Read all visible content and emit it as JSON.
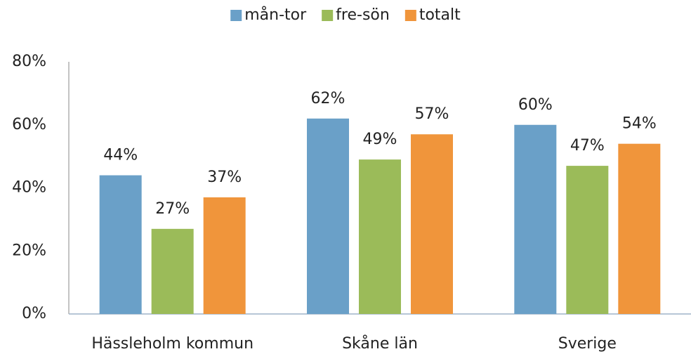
{
  "chart_data": {
    "type": "bar",
    "categories": [
      "Hässleholm kommun",
      "Skåne län",
      "Sverige"
    ],
    "series": [
      {
        "name": "mån-tor",
        "color": "#6aa0c8",
        "values": [
          44,
          62,
          60
        ],
        "value_labels": [
          "44%",
          "62%",
          "60%"
        ]
      },
      {
        "name": "fre-sön",
        "color": "#9bbb59",
        "values": [
          27,
          49,
          47
        ],
        "value_labels": [
          "27%",
          "49%",
          "47%"
        ]
      },
      {
        "name": "totalt",
        "color": "#f0953b",
        "values": [
          37,
          57,
          54
        ],
        "value_labels": [
          "37%",
          "57%",
          "54%"
        ]
      }
    ],
    "ylim": [
      0,
      80
    ],
    "yticks": [
      {
        "value": 0,
        "label": "0%"
      },
      {
        "value": 20,
        "label": "20%"
      },
      {
        "value": 40,
        "label": "40%"
      },
      {
        "value": 60,
        "label": "60%"
      },
      {
        "value": 80,
        "label": "80%"
      }
    ],
    "grid": false,
    "legend": "top"
  }
}
